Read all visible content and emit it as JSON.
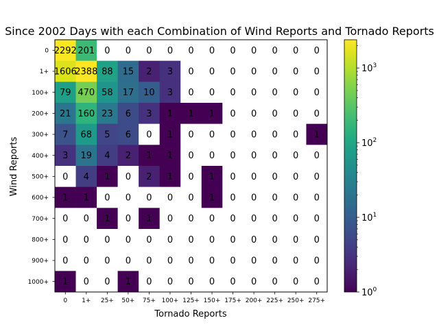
{
  "chart_data": {
    "type": "heatmap",
    "title": "Since 2002 Days with each Combination of Wind Reports and Tornado Reports",
    "xlabel": "Tornado Reports",
    "ylabel": "Wind Reports",
    "x_categories": [
      "0",
      "1+",
      "25+",
      "50+",
      "75+",
      "100+",
      "125+",
      "150+",
      "175+",
      "200+",
      "225+",
      "250+",
      "275+"
    ],
    "y_categories": [
      "0",
      "1+",
      "100+",
      "200+",
      "300+",
      "400+",
      "500+",
      "600+",
      "700+",
      "800+",
      "900+",
      "1000+"
    ],
    "values": [
      [
        2292,
        201,
        0,
        0,
        0,
        0,
        0,
        0,
        0,
        0,
        0,
        0,
        0
      ],
      [
        1606,
        2388,
        88,
        15,
        2,
        3,
        0,
        0,
        0,
        0,
        0,
        0,
        0
      ],
      [
        79,
        470,
        58,
        17,
        10,
        3,
        0,
        0,
        0,
        0,
        0,
        0,
        0
      ],
      [
        21,
        160,
        23,
        6,
        3,
        1,
        1,
        1,
        0,
        0,
        0,
        0,
        0
      ],
      [
        7,
        68,
        5,
        6,
        0,
        1,
        0,
        0,
        0,
        0,
        0,
        0,
        1
      ],
      [
        3,
        19,
        4,
        2,
        1,
        1,
        0,
        0,
        0,
        0,
        0,
        0,
        0
      ],
      [
        0,
        4,
        1,
        0,
        2,
        1,
        0,
        1,
        0,
        0,
        0,
        0,
        0
      ],
      [
        1,
        1,
        0,
        0,
        0,
        0,
        0,
        1,
        0,
        0,
        0,
        0,
        0
      ],
      [
        0,
        0,
        1,
        0,
        1,
        0,
        0,
        0,
        0,
        0,
        0,
        0,
        0
      ],
      [
        0,
        0,
        0,
        0,
        0,
        0,
        0,
        0,
        0,
        0,
        0,
        0,
        0
      ],
      [
        0,
        0,
        0,
        0,
        0,
        0,
        0,
        0,
        0,
        0,
        0,
        0,
        0
      ],
      [
        1,
        0,
        0,
        1,
        0,
        0,
        0,
        0,
        0,
        0,
        0,
        0,
        0
      ]
    ],
    "color_scale": "log",
    "colormap": "viridis",
    "zero_color": "#ffffff",
    "colorbar": {
      "range": [
        1,
        2388
      ],
      "ticks": [
        {
          "value": 1,
          "base": "10",
          "exp": "0"
        },
        {
          "value": 10,
          "base": "10",
          "exp": "1"
        },
        {
          "value": 100,
          "base": "10",
          "exp": "2"
        },
        {
          "value": 1000,
          "base": "10",
          "exp": "3"
        }
      ]
    }
  }
}
